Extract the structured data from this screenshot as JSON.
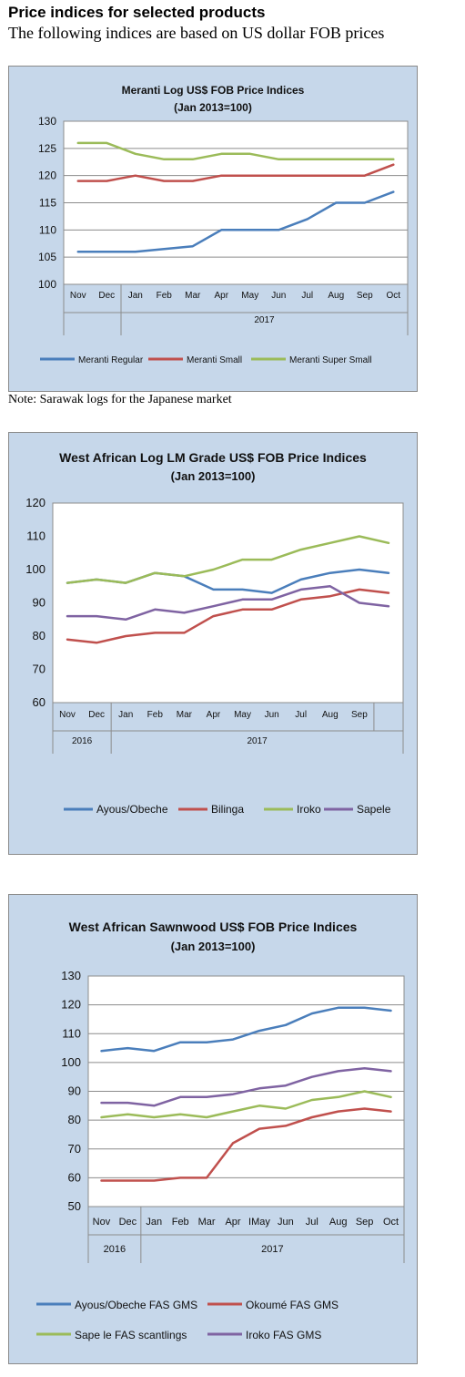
{
  "page": {
    "heading": "Price indices for selected products",
    "subheading": "The following indices are based on US dollar FOB prices",
    "note": "Note: Sarawak logs for the Japanese market"
  },
  "chart_data": [
    {
      "type": "line",
      "title": "Meranti Log US$ FOB Price Indices",
      "subtitle": "(Jan 2013=100)",
      "categories": [
        "Nov",
        "Dec",
        "Jan",
        "Feb",
        "Mar",
        "Apr",
        "May",
        "Jun",
        "Jul",
        "Aug",
        "Sep",
        "Oct"
      ],
      "year_groups": [
        {
          "label": "",
          "span": 2
        },
        {
          "label": "2017",
          "span": 10
        }
      ],
      "ylim": [
        100,
        130
      ],
      "yticks": [
        "100",
        "105",
        "110",
        "115",
        "120",
        "125",
        "130"
      ],
      "grid": true,
      "legend": "bottom",
      "series": [
        {
          "name": "Meranti Regular",
          "color": "#4a7ebb",
          "values": [
            106,
            106,
            106,
            106.5,
            107,
            110,
            110,
            110,
            112,
            115,
            115,
            117
          ]
        },
        {
          "name": "Meranti Small",
          "color": "#c0504d",
          "values": [
            119,
            119,
            120,
            119,
            119,
            120,
            120,
            120,
            120,
            120,
            120,
            122
          ]
        },
        {
          "name": "Meranti Super Small",
          "color": "#9bbb59",
          "values": [
            126,
            126,
            124,
            123,
            123,
            124,
            124,
            123,
            123,
            123,
            123,
            123
          ]
        }
      ]
    },
    {
      "type": "line",
      "title": "West African Log LM Grade US$ FOB Price Indices",
      "subtitle": "(Jan 2013=100)",
      "categories": [
        "Nov",
        "Dec",
        "Jan",
        "Feb",
        "Mar",
        "Apr",
        "May",
        "Jun",
        "Jul",
        "Aug",
        "Sep",
        ""
      ],
      "year_groups": [
        {
          "label": "2016",
          "span": 2
        },
        {
          "label": "2017",
          "span": 10
        }
      ],
      "ylim": [
        60,
        120
      ],
      "yticks": [
        "60",
        "70",
        "80",
        "90",
        "100",
        "110",
        "120"
      ],
      "grid": false,
      "legend": "bottom",
      "series": [
        {
          "name": "Ayous/Obeche",
          "color": "#4a7ebb",
          "values": [
            96,
            97,
            96,
            99,
            98,
            94,
            94,
            93,
            97,
            99,
            100,
            99
          ]
        },
        {
          "name": "Bilinga",
          "color": "#c0504d",
          "values": [
            79,
            78,
            80,
            81,
            81,
            86,
            88,
            88,
            91,
            92,
            94,
            93
          ]
        },
        {
          "name": "Iroko",
          "color": "#9bbb59",
          "values": [
            96,
            97,
            96,
            99,
            98,
            100,
            103,
            103,
            106,
            108,
            110,
            108
          ]
        },
        {
          "name": "Sapele",
          "color": "#7f63a2",
          "values": [
            86,
            86,
            85,
            88,
            87,
            89,
            91,
            91,
            94,
            95,
            90,
            89
          ]
        }
      ]
    },
    {
      "type": "line",
      "title": "West African Sawnwood US$ FOB Price Indices",
      "subtitle": "(Jan 2013=100)",
      "categories": [
        "Nov",
        "Dec",
        "Jan",
        "Feb",
        "Mar",
        "Apr",
        "May",
        "Jun",
        "Jul",
        "Aug",
        "Sep",
        "Oct"
      ],
      "tick_labels": [
        "Nov",
        "Dec",
        "Jan",
        "Feb",
        "Mar",
        "Apr",
        "IMay",
        "Jun",
        "Jul",
        "Aug",
        "Sep",
        "Oct"
      ],
      "year_groups": [
        {
          "label": "2016",
          "span": 2
        },
        {
          "label": "2017",
          "span": 10
        }
      ],
      "ylim": [
        50,
        130
      ],
      "yticks": [
        "50",
        "60",
        "70",
        "80",
        "90",
        "100",
        "110",
        "120",
        "130"
      ],
      "grid": true,
      "legend": "bottom",
      "series": [
        {
          "name": "Ayous/Obeche FAS GMS",
          "color": "#4a7ebb",
          "values": [
            104,
            105,
            104,
            107,
            107,
            108,
            111,
            113,
            117,
            119,
            119,
            118
          ]
        },
        {
          "name": "Okoumé  FAS GMS",
          "color": "#c0504d",
          "values": [
            59,
            59,
            59,
            60,
            60,
            72,
            77,
            78,
            81,
            83,
            84,
            83
          ]
        },
        {
          "name": "Sape le FAS scantlings",
          "color": "#9bbb59",
          "values": [
            81,
            82,
            81,
            82,
            81,
            83,
            85,
            84,
            87,
            88,
            90,
            88
          ]
        },
        {
          "name": "Iroko FAS GMS",
          "color": "#7f63a2",
          "values": [
            86,
            86,
            85,
            88,
            88,
            89,
            91,
            92,
            95,
            97,
            98,
            97
          ]
        }
      ]
    }
  ]
}
